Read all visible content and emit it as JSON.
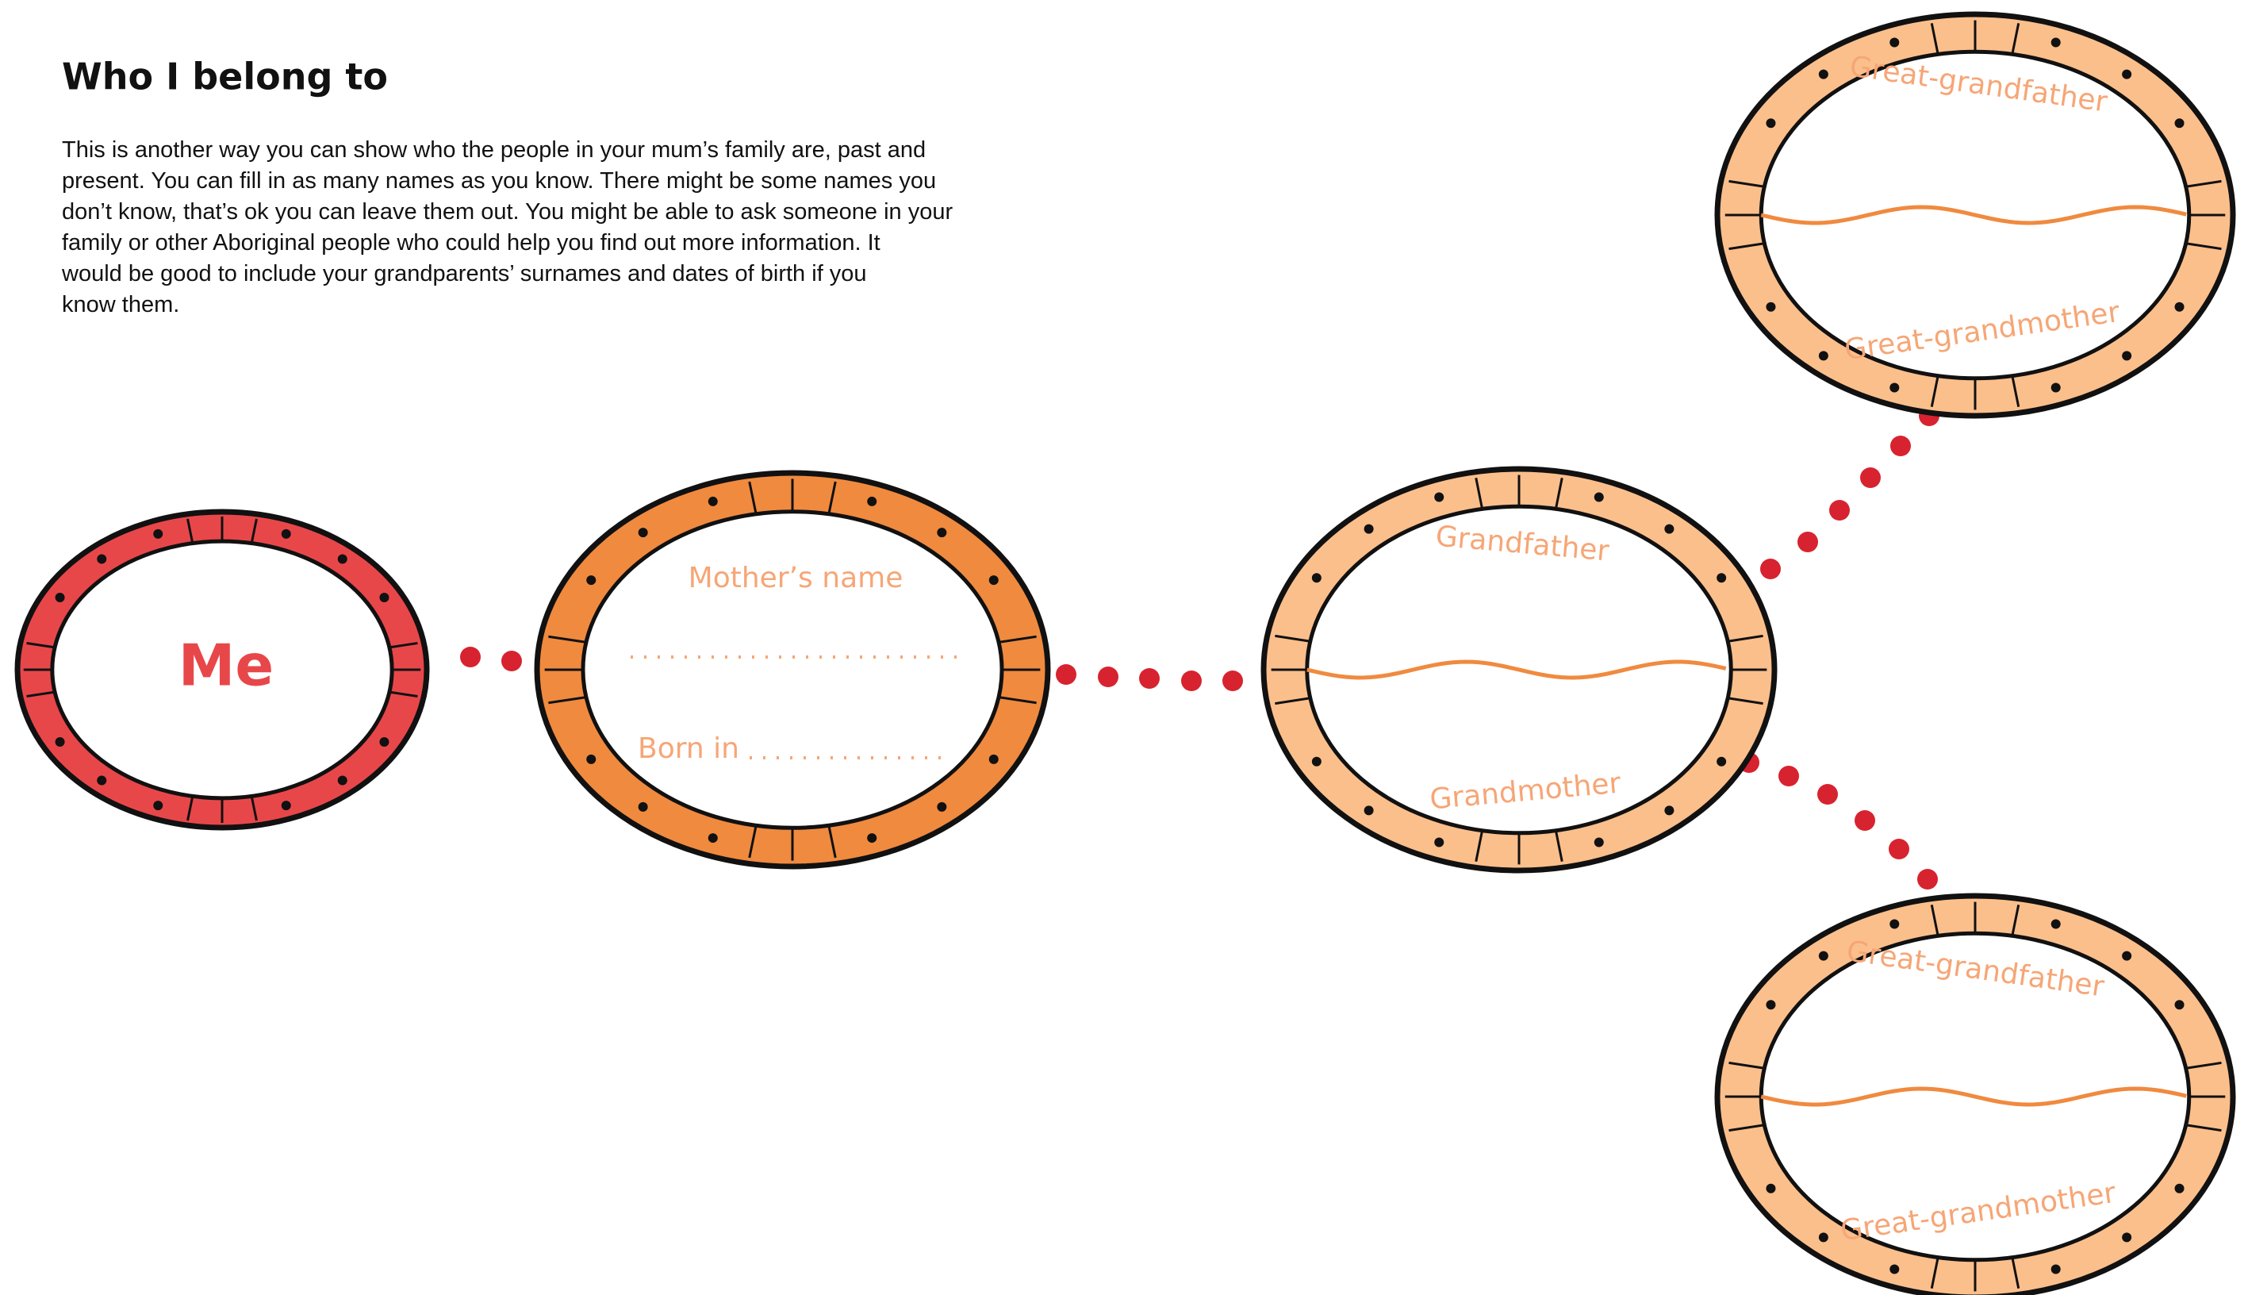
{
  "header": {
    "title": "Who I belong to",
    "paragraph": [
      "This is another way you can show who the people in your mum’s family are, past and",
      "present. You can fill in as many names as you know.  There might be some names you",
      "don’t know, that’s ok you can leave them out. You might be able to ask someone in your",
      "family or other Aboriginal people who could help you find out more information.  It",
      "would be good to include your grandparents’ surnames and dates of birth if you",
      "know them."
    ]
  },
  "nodes": [
    {
      "label": "Me"
    },
    {
      "name_label": "Mother’s name",
      "born_label": "Born in"
    },
    {
      "top_label": "Grandfather",
      "bottom_label": "Grandmother"
    },
    {
      "top_label": "Great-grandfather",
      "bottom_label": "Great-grandmother"
    },
    {
      "top_label": "Great-grandfather",
      "bottom_label": "Great-grandmother"
    }
  ]
}
